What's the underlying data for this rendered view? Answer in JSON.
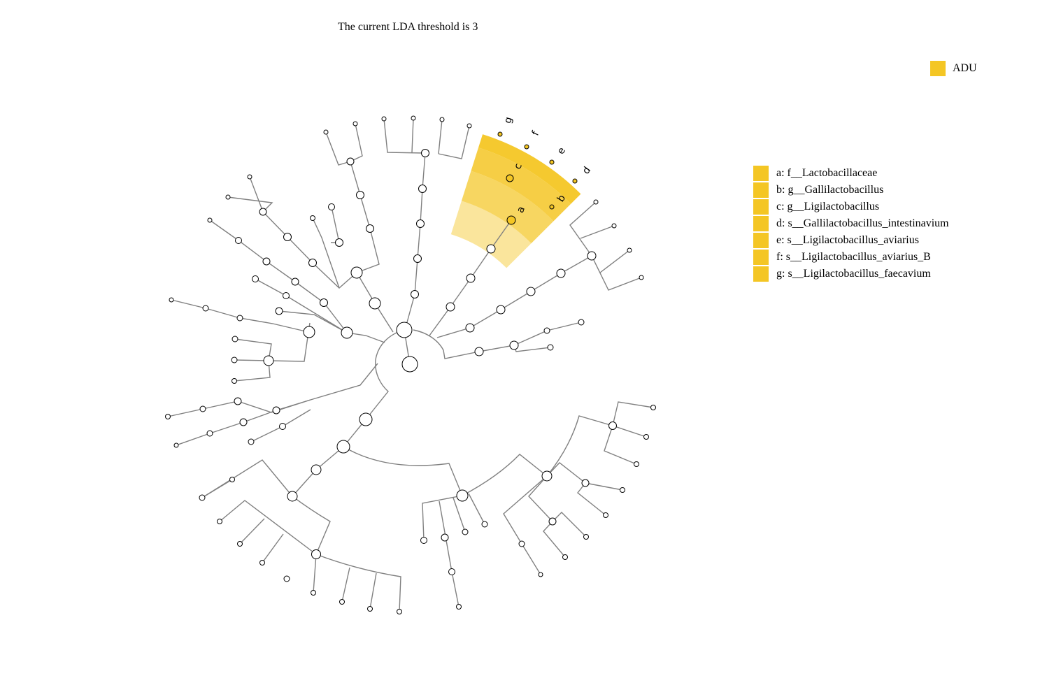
{
  "title": "The current LDA threshold is 3",
  "colors": {
    "highlight": "#f4c624",
    "branch": "#808080",
    "node_fill": "#ffffff"
  },
  "group_legend": {
    "label": "ADU",
    "color": "#f4c624"
  },
  "clade_legend": [
    {
      "key": "a",
      "text": "a: f__Lactobacillaceae"
    },
    {
      "key": "b",
      "text": "b: g__Gallilactobacillus"
    },
    {
      "key": "c",
      "text": "c: g__Ligilactobacillus"
    },
    {
      "key": "d",
      "text": "d: s__Gallilactobacillus_intestinavium"
    },
    {
      "key": "e",
      "text": "e: s__Ligilactobacillus_aviarius"
    },
    {
      "key": "f",
      "text": "f: s__Ligilactobacillus_aviarius_B"
    },
    {
      "key": "g",
      "text": "g: s__Ligilactobacillus_faecavium"
    }
  ],
  "clade_labels": [
    "a",
    "b",
    "c",
    "d",
    "e",
    "f",
    "g"
  ]
}
